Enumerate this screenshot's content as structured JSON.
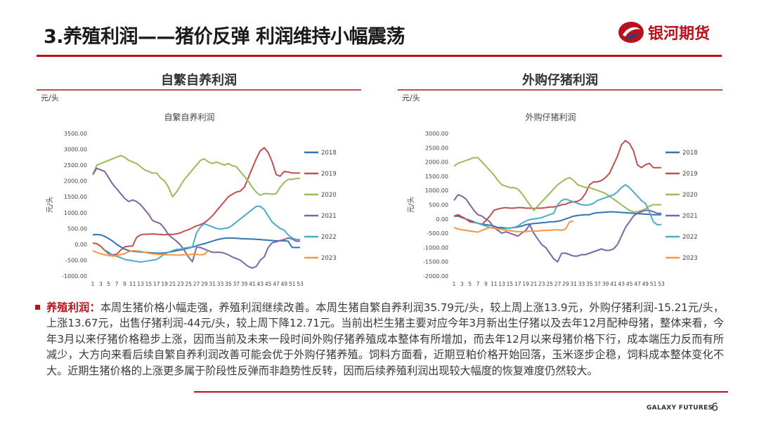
{
  "slide": {
    "title": "3.养殖利润——猪价反弹 利润维持小幅震荡",
    "logo_text": "银河期货",
    "footer_brand": "GALAXY FUTURES",
    "page_number": "6",
    "accent_color": "#b5121b"
  },
  "left_panel": {
    "header": "自繁自养利润",
    "unit": "元/头"
  },
  "right_panel": {
    "header": "外购仔猪利润",
    "unit": "元/头"
  },
  "commentary": {
    "lead": "养殖利润：",
    "body": "本周生猪价格小幅走强，养殖利润继续改善。本周生猪自繁自养利润35.79元/头，较上周上涨13.9元，外购仔猪利润-15.21元/头，上涨13.67元，出售仔猪利润-44元/头，较上周下降12.71元。当前出栏生猪主要对应今年3月新出生仔猪以及去年12月配种母猪，整体来看，今年3月以来仔猪价格稳步上涨，因而当前及未来一段时间外购仔猪养殖成本整体有所增加，而去年12月以来母猪价格下行，成本端压力反而有所减少，大方向来看后续自繁自养利润改善可能会优于外购仔猪养殖。饲料方面看，近期豆粕价格开始回落，玉米逐步企稳，饲料成本整体变化不大。近期生猪价格的上涨更多属于阶段性反弹而非趋势性反转，因而后续养殖利润出现较大幅度的恢复难度仍然较大。"
  },
  "chart_data": [
    {
      "type": "line",
      "title": "自繁自养利润",
      "ylabel": "元/头",
      "xlabel": "",
      "ylim": [
        -1000,
        3500
      ],
      "ytick_step": 500,
      "ytick_format": "0.00",
      "x": [
        1,
        2,
        3,
        4,
        5,
        6,
        7,
        8,
        9,
        10,
        11,
        12,
        13,
        14,
        15,
        16,
        17,
        18,
        19,
        20,
        21,
        22,
        23,
        24,
        25,
        26,
        27,
        28,
        29,
        30,
        31,
        32,
        33,
        34,
        35,
        36,
        37,
        38,
        39,
        40,
        41,
        42,
        43,
        44,
        45,
        46,
        47,
        48,
        49,
        50,
        51,
        52,
        53
      ],
      "xtick_labels": [
        "1",
        "3",
        "5",
        "7",
        "9",
        "11",
        "13",
        "15",
        "17",
        "19",
        "21",
        "23",
        "25",
        "27",
        "29",
        "31",
        "33",
        "35",
        "37",
        "39",
        "41",
        "43",
        "45",
        "47",
        "49",
        "51",
        "53"
      ],
      "legend_position": "right",
      "grid": false,
      "series": [
        {
          "name": "2018",
          "color": "#2e75b6",
          "values": [
            300,
            310,
            300,
            250,
            180,
            100,
            0,
            -80,
            -150,
            -200,
            -220,
            -230,
            -240,
            -250,
            -260,
            -270,
            -280,
            -280,
            -270,
            -250,
            -230,
            -200,
            -180,
            -150,
            -120,
            -90,
            -50,
            -10,
            20,
            60,
            100,
            140,
            170,
            190,
            200,
            200,
            190,
            180,
            175,
            170,
            165,
            160,
            150,
            140,
            130,
            120,
            110,
            110,
            110,
            100,
            -100,
            -100,
            -100
          ]
        },
        {
          "name": "2019",
          "color": "#c0504d",
          "values": [
            40,
            20,
            -60,
            -190,
            -300,
            -330,
            -320,
            -180,
            -80,
            -60,
            -50,
            220,
            300,
            320,
            320,
            330,
            320,
            310,
            300,
            320,
            310,
            330,
            360,
            420,
            460,
            520,
            580,
            620,
            680,
            780,
            900,
            1050,
            1200,
            1350,
            1500,
            1580,
            1650,
            1680,
            1800,
            2100,
            2400,
            2700,
            2950,
            3050,
            2900,
            2600,
            2200,
            2150,
            2300,
            2280,
            2250,
            2250,
            2250
          ]
        },
        {
          "name": "2020",
          "color": "#9bbb59",
          "values": [
            2200,
            2500,
            2550,
            2600,
            2650,
            2700,
            2750,
            2800,
            2750,
            2650,
            2600,
            2550,
            2450,
            2350,
            2300,
            2250,
            2250,
            2100,
            2000,
            1800,
            1500,
            1650,
            1850,
            2050,
            2200,
            2350,
            2500,
            2650,
            2700,
            2600,
            2550,
            2600,
            2550,
            2500,
            2550,
            2480,
            2450,
            2300,
            2150,
            2000,
            1800,
            1650,
            1550,
            1600,
            1600,
            1580,
            1600,
            1800,
            1950,
            2050,
            2050,
            2080,
            2080
          ]
        },
        {
          "name": "2021",
          "color": "#8064a2",
          "values": [
            2200,
            2400,
            2350,
            2300,
            2100,
            1900,
            1750,
            1600,
            1450,
            1350,
            1400,
            1350,
            1250,
            1100,
            950,
            750,
            700,
            650,
            500,
            300,
            200,
            100,
            -20,
            -200,
            -400,
            -550,
            -100,
            -100,
            -150,
            -200,
            -250,
            -250,
            -250,
            -280,
            -330,
            -400,
            -450,
            -500,
            -600,
            -700,
            -750,
            -700,
            -500,
            -400,
            -100,
            50,
            80,
            120,
            150,
            200,
            170,
            100,
            100
          ]
        },
        {
          "name": "2022",
          "color": "#4bacc6",
          "values": [
            null,
            null,
            null,
            -180,
            -250,
            -350,
            -380,
            -420,
            -480,
            -500,
            -520,
            -540,
            -560,
            -540,
            -520,
            -500,
            -480,
            -400,
            -300,
            -250,
            -200,
            -160,
            -150,
            -120,
            -100,
            -80,
            350,
            550,
            650,
            600,
            550,
            500,
            480,
            500,
            520,
            600,
            700,
            800,
            900,
            1000,
            1100,
            1200,
            1200,
            1100,
            900,
            700,
            600,
            500,
            450,
            300,
            200,
            150,
            150
          ]
        },
        {
          "name": "2023",
          "color": "#f79646",
          "values": [
            -200,
            -260,
            -300,
            -330,
            -350,
            -370,
            -370,
            -320,
            -300,
            -230,
            -200,
            -210,
            -220,
            -250,
            -280,
            -300,
            -310,
            -320,
            -330,
            -330,
            -330,
            -340,
            -340,
            -330,
            -330,
            -310,
            -320,
            -330,
            -320,
            -200,
            null,
            null,
            null,
            null,
            null,
            null,
            null,
            null,
            null,
            null,
            null,
            null,
            null,
            null,
            null,
            null,
            null,
            null,
            null,
            null,
            null,
            null,
            null
          ]
        }
      ]
    },
    {
      "type": "line",
      "title": "外购仔猪利润",
      "ylabel": "元/头",
      "xlabel": "",
      "ylim": [
        -2000,
        3000
      ],
      "ytick_step": 500,
      "ytick_format": "0.00",
      "x": [
        1,
        2,
        3,
        4,
        5,
        6,
        7,
        8,
        9,
        10,
        11,
        12,
        13,
        14,
        15,
        16,
        17,
        18,
        19,
        20,
        21,
        22,
        23,
        24,
        25,
        26,
        27,
        28,
        29,
        30,
        31,
        32,
        33,
        34,
        35,
        36,
        37,
        38,
        39,
        40,
        41,
        42,
        43,
        44,
        45,
        46,
        47,
        48,
        49,
        50,
        51,
        52,
        53
      ],
      "xtick_labels": [
        "1",
        "3",
        "5",
        "7",
        "9",
        "11",
        "13",
        "15",
        "17",
        "19",
        "21",
        "23",
        "25",
        "27",
        "29",
        "31",
        "33",
        "35",
        "37",
        "39",
        "41",
        "43",
        "45",
        "47",
        "49",
        "51",
        "53"
      ],
      "legend_position": "right",
      "grid": false,
      "series": [
        {
          "name": "2018",
          "color": "#2e75b6",
          "values": [
            100,
            100,
            50,
            0,
            -50,
            -100,
            -150,
            -180,
            -200,
            -220,
            -250,
            -300,
            -300,
            -320,
            -320,
            -300,
            -280,
            -250,
            -200,
            -180,
            -160,
            -150,
            -130,
            -120,
            -100,
            -100,
            -80,
            -50,
            0,
            50,
            100,
            120,
            140,
            150,
            150,
            200,
            220,
            230,
            240,
            250,
            250,
            240,
            230,
            220,
            210,
            200,
            190,
            180,
            170,
            160,
            150,
            150,
            150
          ]
        },
        {
          "name": "2019",
          "color": "#c0504d",
          "values": [
            100,
            150,
            80,
            0,
            -100,
            -120,
            -150,
            -200,
            -50,
            100,
            300,
            350,
            380,
            400,
            380,
            380,
            400,
            400,
            380,
            380,
            370,
            380,
            380,
            400,
            420,
            420,
            450,
            500,
            520,
            580,
            600,
            620,
            700,
            900,
            1200,
            1300,
            1300,
            1350,
            1450,
            1600,
            1900,
            2200,
            2600,
            2750,
            2650,
            2400,
            1900,
            1800,
            1900,
            1950,
            1800,
            1800,
            1800
          ]
        },
        {
          "name": "2020",
          "color": "#9bbb59",
          "values": [
            1850,
            1950,
            2000,
            2050,
            2100,
            2150,
            2150,
            2000,
            1850,
            1700,
            1550,
            1350,
            1200,
            1150,
            1100,
            1100,
            1050,
            900,
            700,
            500,
            300,
            450,
            600,
            750,
            900,
            1050,
            1200,
            1300,
            1400,
            1450,
            1350,
            1200,
            1150,
            1100,
            1100,
            1050,
            1000,
            950,
            900,
            800,
            700,
            600,
            500,
            400,
            300,
            250,
            250,
            300,
            350,
            450,
            500,
            500,
            500
          ]
        },
        {
          "name": "2021",
          "color": "#8064a2",
          "values": [
            650,
            850,
            800,
            700,
            500,
            300,
            150,
            100,
            0,
            -100,
            -300,
            -400,
            -500,
            -450,
            -500,
            -550,
            -600,
            -500,
            -400,
            -200,
            -500,
            -700,
            -900,
            -1000,
            -1200,
            -1400,
            -1500,
            -1200,
            -1200,
            -1250,
            -1300,
            -1300,
            -1250,
            -1250,
            -1200,
            -1150,
            -1100,
            -1050,
            -1100,
            -1100,
            -1050,
            -900,
            -600,
            -300,
            -100,
            100,
            200,
            250,
            300,
            300,
            250,
            200,
            200
          ]
        },
        {
          "name": "2022",
          "color": "#4bacc6",
          "values": [
            null,
            null,
            null,
            null,
            null,
            -100,
            -150,
            -200,
            -250,
            -300,
            -320,
            -350,
            -350,
            -330,
            -320,
            -300,
            -250,
            -150,
            -80,
            -20,
            0,
            20,
            50,
            100,
            150,
            200,
            500,
            650,
            700,
            650,
            600,
            550,
            500,
            480,
            500,
            550,
            650,
            700,
            750,
            800,
            850,
            950,
            1100,
            1200,
            1100,
            950,
            800,
            650,
            550,
            250,
            -100,
            -200,
            -200
          ]
        },
        {
          "name": "2023",
          "color": "#f79646",
          "values": [
            -300,
            -350,
            -380,
            -400,
            -420,
            -440,
            -460,
            -400,
            -350,
            -300,
            -320,
            -350,
            -370,
            -390,
            -410,
            -430,
            -440,
            -440,
            -440,
            -430,
            -420,
            -420,
            -410,
            -400,
            -400,
            -380,
            -380,
            -400,
            -350,
            -100,
            -80,
            null,
            null,
            null,
            null,
            null,
            null,
            null,
            null,
            null,
            null,
            null,
            null,
            null,
            null,
            null,
            null,
            null,
            null,
            null,
            null,
            null,
            null
          ]
        }
      ]
    }
  ]
}
